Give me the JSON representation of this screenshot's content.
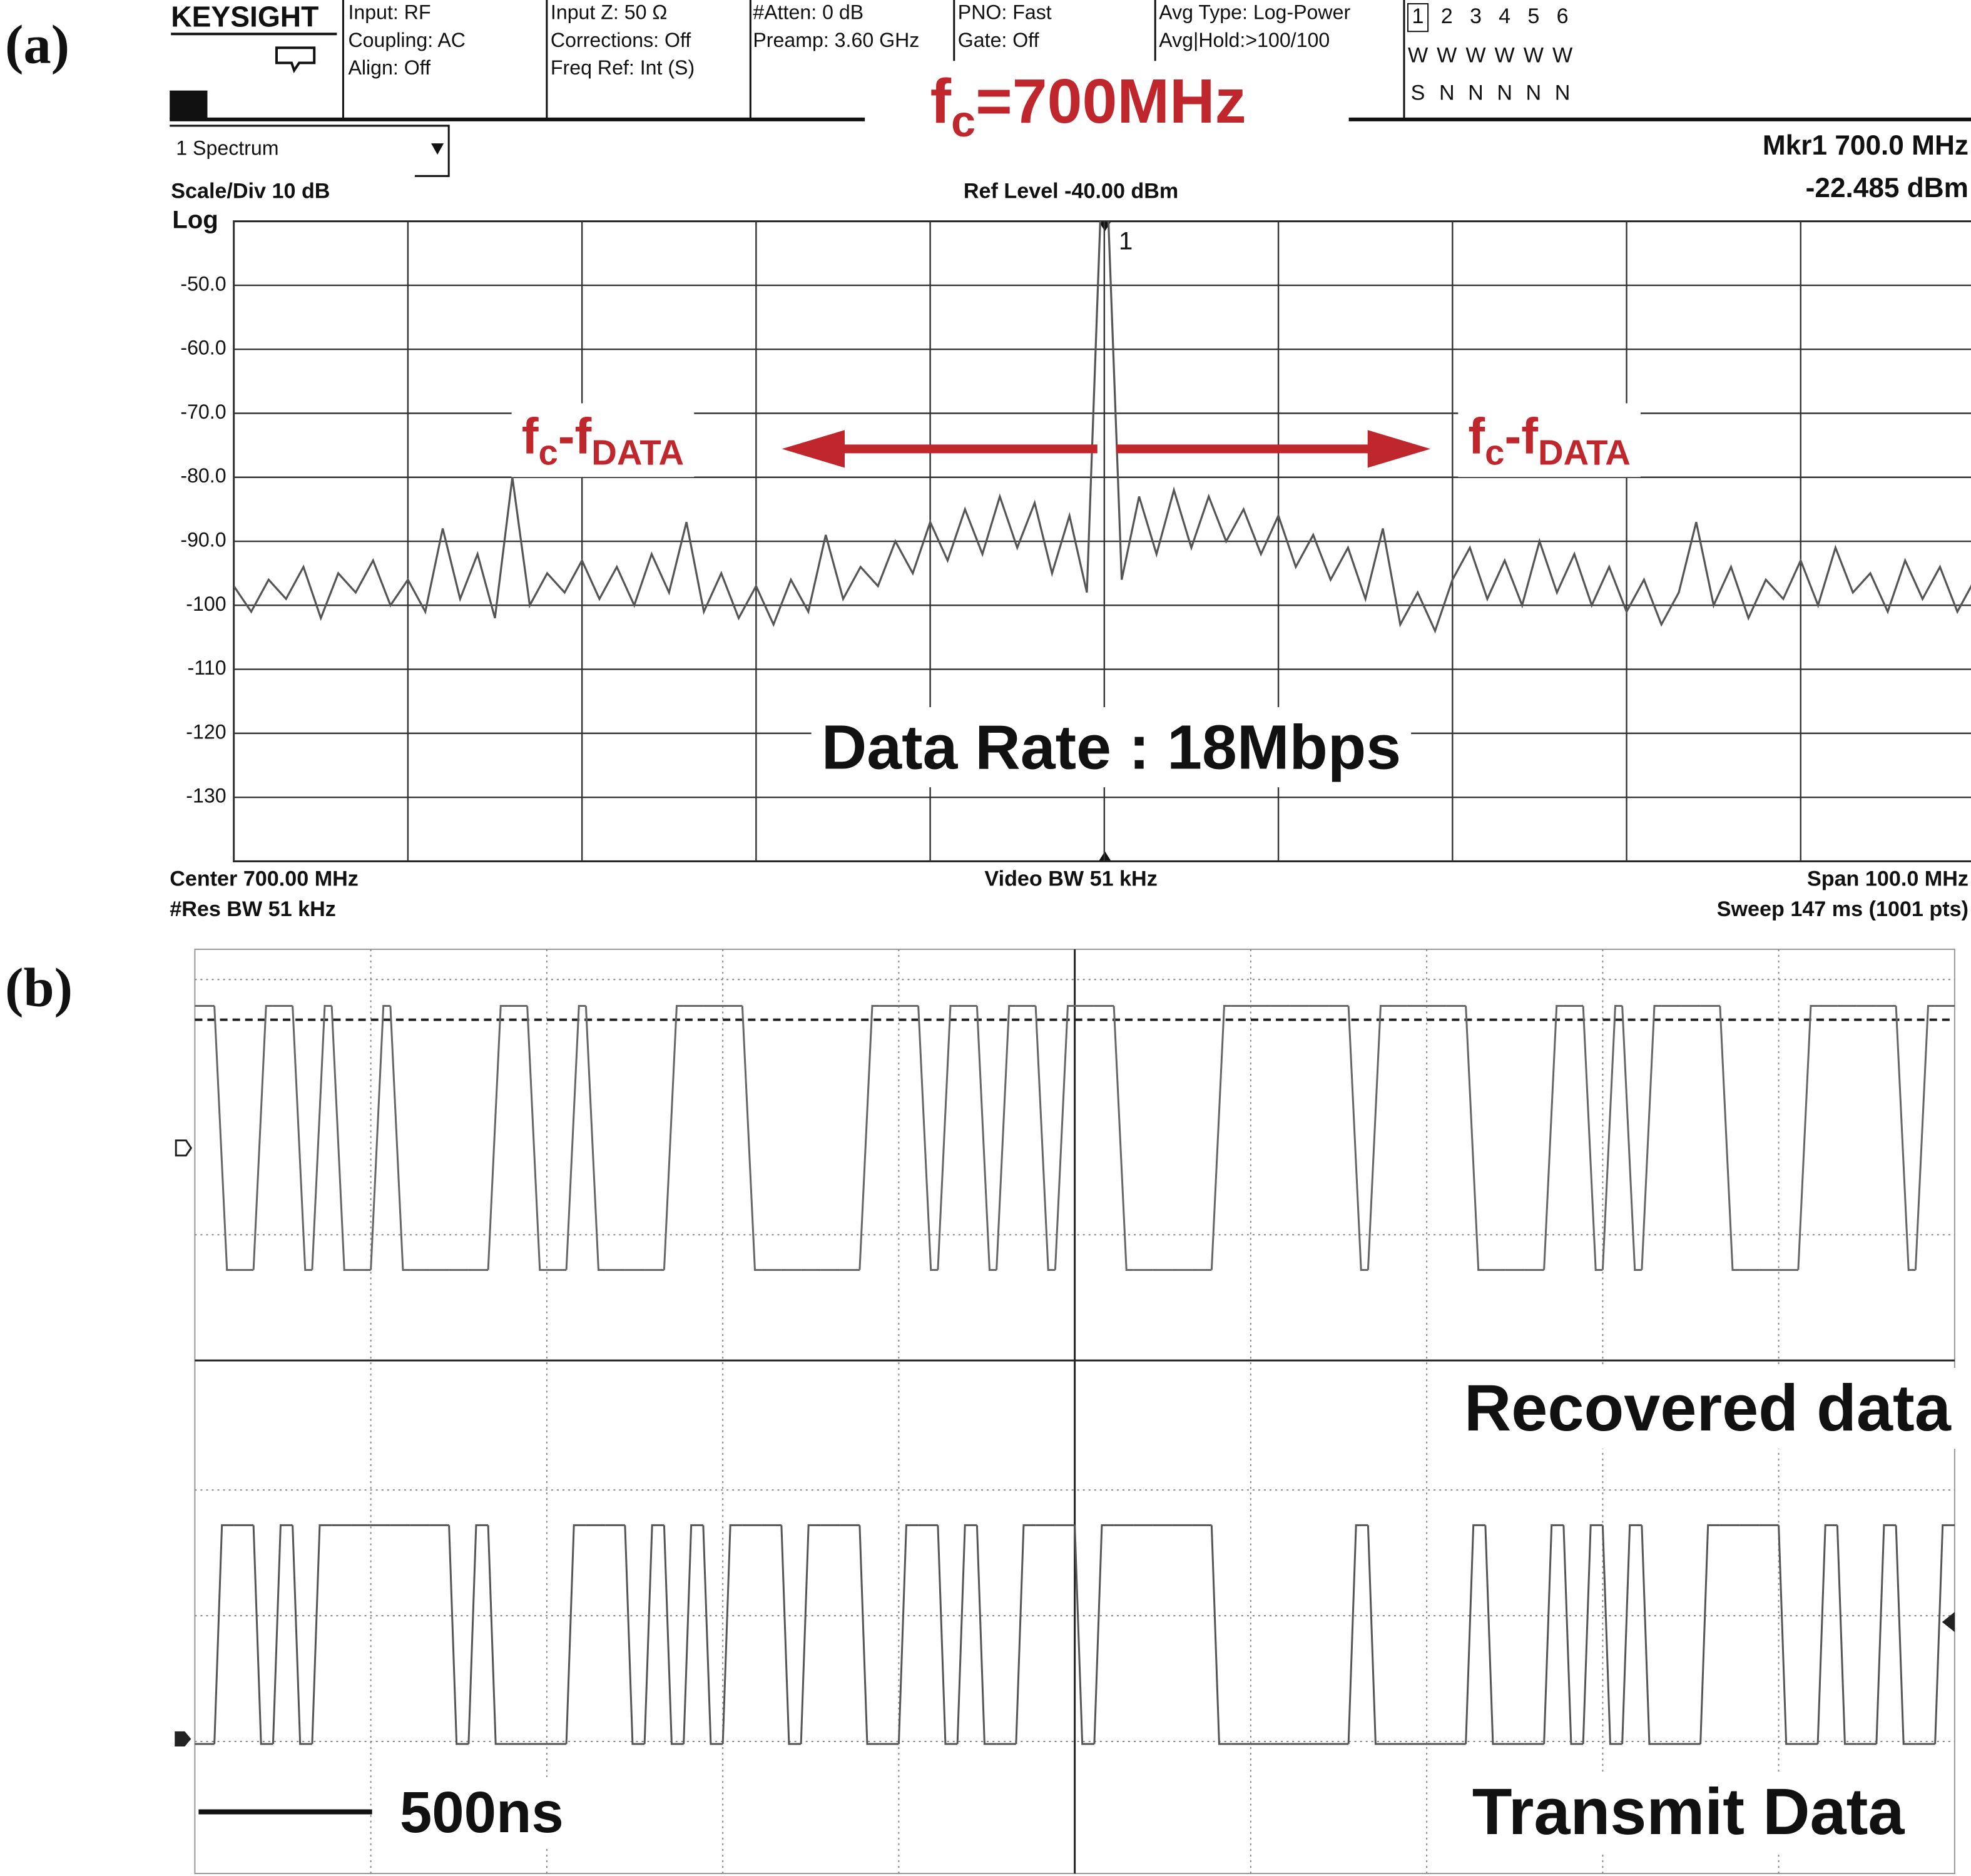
{
  "chart_data": [
    {
      "type": "line",
      "panel": "(a)",
      "brand": "KEYSIGHT",
      "settings": [
        [
          "Input: RF",
          "Coupling: AC",
          "Align: Off"
        ],
        [
          "Input Z: 50 Ω",
          "Corrections: Off",
          "Freq Ref: Int (S)"
        ],
        [
          "#Atten: 0 dB",
          "Preamp: 3.60 GHz"
        ],
        [
          "PNO: Fast",
          "Gate: Off"
        ],
        [
          "Avg Type: Log-Power",
          "Avg|Hold:>100/100"
        ]
      ],
      "traces": {
        "numbers": [
          "1",
          "2",
          "3",
          "4",
          "5",
          "6"
        ],
        "types": [
          "W",
          "W",
          "W",
          "W",
          "W",
          "W"
        ],
        "detectors": [
          "S",
          "N",
          "N",
          "N",
          "N",
          "N"
        ]
      },
      "window": "1 Spectrum",
      "marker": {
        "name": "Mkr1  700.0 MHz",
        "readout": "-22.485 dBm",
        "label": "1"
      },
      "scale": "Scale/Div 10 dB",
      "log_label": "Log",
      "ref_level": "Ref Level -40.00 dBm",
      "footer": {
        "center": "Center 700.00 MHz",
        "rbw": "#Res BW 51 kHz",
        "vbw": "Video BW 51 kHz",
        "span": "Span 100.0 MHz",
        "sweep": "Sweep 147 ms (1001 pts)"
      },
      "annotations": [
        {
          "color": "#c0272d",
          "segments": [
            {
              "text": "f"
            },
            {
              "text": "c",
              "sub": true
            },
            {
              "text": "=700MHz"
            }
          ]
        },
        {
          "color": "#c0272d",
          "segments": [
            {
              "text": "f"
            },
            {
              "text": "c",
              "sub": true
            },
            {
              "text": "-f"
            },
            {
              "text": "DATA",
              "sub": true
            }
          ]
        },
        {
          "color": "#c0272d",
          "segments": [
            {
              "text": "f"
            },
            {
              "text": "c",
              "sub": true
            },
            {
              "text": "-f"
            },
            {
              "text": "DATA",
              "sub": true
            }
          ]
        },
        {
          "color": "#111111",
          "segments": [
            {
              "text": "Data Rate : 18Mbps"
            }
          ]
        }
      ],
      "arrow_color": "#c0272d",
      "xlim": [
        650,
        750
      ],
      "xticks": [
        650,
        660,
        670,
        680,
        690,
        700,
        710,
        720,
        730,
        740,
        750
      ],
      "ylim": [
        -140,
        -40
      ],
      "yticks": [
        {
          "value": -50,
          "label": "-50.0"
        },
        {
          "value": -60,
          "label": "-60.0"
        },
        {
          "value": -70,
          "label": "-70.0"
        },
        {
          "value": -80,
          "label": "-80.0"
        },
        {
          "value": -90,
          "label": "-90.0"
        },
        -100,
        -110,
        -120,
        -130
      ],
      "grid": true,
      "color": "#555555",
      "x": [
        650,
        651,
        652,
        653,
        654,
        655,
        656,
        657,
        658,
        659,
        660,
        661,
        662,
        663,
        664,
        665,
        666,
        667,
        668,
        669,
        670,
        671,
        672,
        673,
        674,
        675,
        676,
        677,
        678,
        679,
        680,
        681,
        682,
        683,
        684,
        685,
        686,
        687,
        688,
        689,
        690,
        691,
        692,
        693,
        694,
        695,
        696,
        697,
        698,
        699,
        700,
        701,
        702,
        703,
        704,
        705,
        706,
        707,
        708,
        709,
        710,
        711,
        712,
        713,
        714,
        715,
        716,
        717,
        718,
        719,
        720,
        721,
        722,
        723,
        724,
        725,
        726,
        727,
        728,
        729,
        730,
        731,
        732,
        733,
        734,
        735,
        736,
        737,
        738,
        739,
        740,
        741,
        742,
        743,
        744,
        745,
        746,
        747,
        748,
        749,
        750
      ],
      "values": [
        -97,
        -101,
        -96,
        -99,
        -94,
        -102,
        -95,
        -98,
        -93,
        -100,
        -96,
        -101,
        -88,
        -99,
        -92,
        -102,
        -80,
        -100,
        -95,
        -98,
        -93,
        -99,
        -94,
        -100,
        -92,
        -98,
        -87,
        -101,
        -95,
        -102,
        -97,
        -103,
        -96,
        -101,
        -89,
        -99,
        -94,
        -97,
        -90,
        -95,
        -87,
        -93,
        -85,
        -92,
        -83,
        -91,
        -84,
        -95,
        -86,
        -98,
        -22.485,
        -96,
        -83,
        -92,
        -82,
        -91,
        -83,
        -90,
        -85,
        -92,
        -86,
        -94,
        -89,
        -96,
        -91,
        -99,
        -88,
        -103,
        -98,
        -104,
        -96,
        -91,
        -99,
        -93,
        -100,
        -90,
        -98,
        -92,
        -100,
        -94,
        -101,
        -96,
        -103,
        -98,
        -87,
        -100,
        -94,
        -102,
        -96,
        -99,
        -93,
        -100,
        -91,
        -98,
        -95,
        -101,
        -93,
        -99,
        -94,
        -101,
        -96
      ]
    },
    {
      "type": "digital",
      "panel": "(b)",
      "scale_bar": "500ns",
      "label_color": "#c0272d",
      "series": [
        {
          "name": "Recovered data",
          "color": "#666666",
          "values": [
            1,
            0,
            0,
            1,
            1,
            0,
            1,
            0,
            0,
            1,
            0,
            0,
            0,
            0,
            0,
            1,
            1,
            0,
            0,
            1,
            0,
            0,
            0,
            0,
            1,
            1,
            1,
            1,
            0,
            0,
            0,
            0,
            0,
            0,
            1,
            1,
            1,
            0,
            1,
            1,
            0,
            1,
            1,
            0,
            1,
            1,
            1,
            0,
            0,
            0,
            0,
            0,
            1,
            1,
            1,
            1,
            1,
            1,
            1,
            0,
            1,
            1,
            1,
            1,
            1,
            0,
            0,
            0,
            0,
            1,
            1,
            0,
            1,
            0,
            1,
            1,
            1,
            1,
            0,
            0,
            0,
            0,
            1,
            1,
            1,
            1,
            1,
            0,
            1,
            1
          ]
        },
        {
          "name": "Transmit Data",
          "color": "#555555",
          "values": [
            0,
            1,
            1,
            0,
            1,
            0,
            1,
            1,
            1,
            1,
            1,
            1,
            1,
            0,
            1,
            0,
            0,
            0,
            0,
            1,
            1,
            1,
            0,
            1,
            0,
            1,
            0,
            1,
            1,
            1,
            0,
            1,
            1,
            1,
            0,
            0,
            1,
            1,
            0,
            1,
            0,
            0,
            1,
            1,
            1,
            0,
            1,
            1,
            1,
            1,
            1,
            1,
            0,
            0,
            0,
            0,
            0,
            0,
            0,
            1,
            0,
            0,
            0,
            0,
            0,
            1,
            0,
            0,
            0,
            1,
            0,
            1,
            0,
            1,
            0,
            0,
            0,
            1,
            1,
            1,
            1,
            0,
            0,
            1,
            0,
            0,
            1,
            0,
            0,
            1
          ]
        }
      ]
    }
  ]
}
